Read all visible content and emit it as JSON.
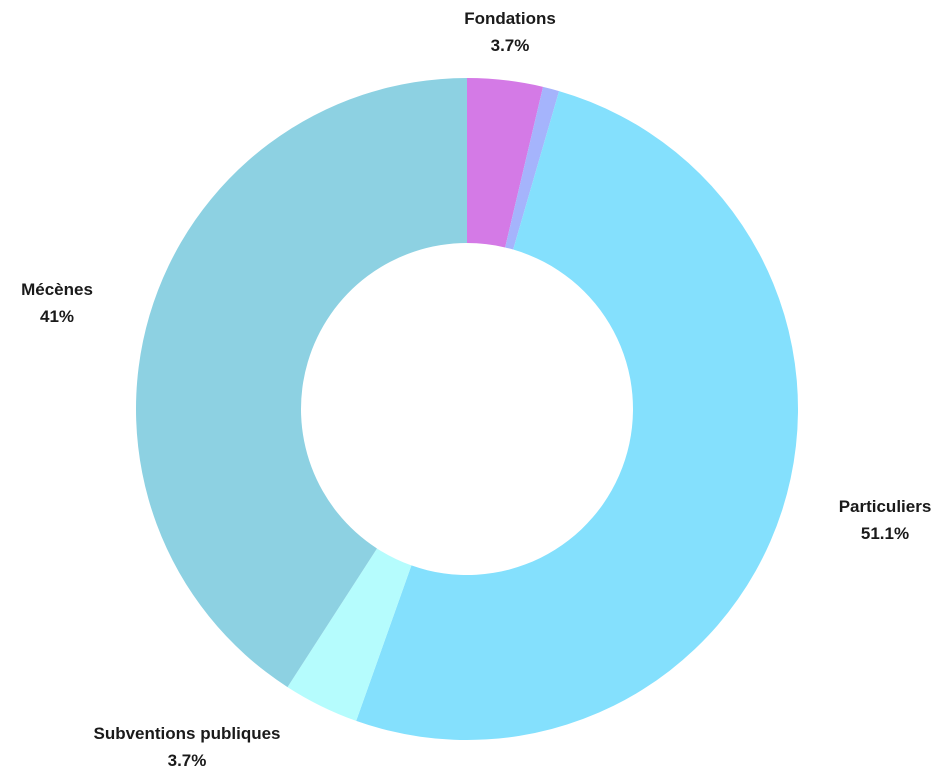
{
  "chart_data": {
    "type": "pie",
    "variant": "donut",
    "title": "",
    "legend": "none",
    "start_angle_deg": 0,
    "direction": "clockwise",
    "slices": [
      {
        "name": "Fondations",
        "value": 3.7,
        "label": "3.7%",
        "color": "#d47ae6",
        "show_label": true
      },
      {
        "name": "",
        "value": 0.8,
        "label": "",
        "color": "#a5b4fc",
        "show_label": false
      },
      {
        "name": "Particuliers",
        "value": 51.1,
        "label": "51.1%",
        "color": "#84e0fd",
        "show_label": true
      },
      {
        "name": "Subventions publiques",
        "value": 3.7,
        "label": "3.7%",
        "color": "#b5fcfd",
        "show_label": true
      },
      {
        "name": "Mécènes",
        "value": 41,
        "label": "41%",
        "color": "#8dd1e2",
        "show_label": true
      }
    ]
  }
}
